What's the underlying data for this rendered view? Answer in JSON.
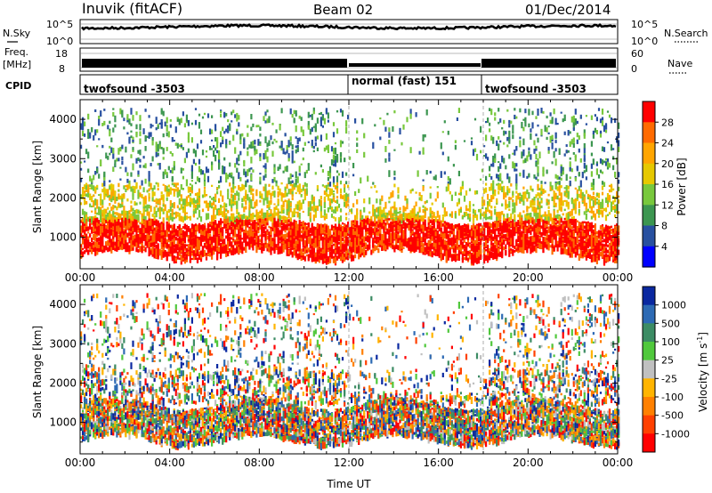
{
  "header": {
    "station": "Inuvik (fitACF)",
    "beam": "Beam 02",
    "date": "01/Dec/2014"
  },
  "noise_panel": {
    "left_label": "N.Sky",
    "right_label": "N.Search",
    "left_ticks": [
      "10^5",
      "10^0"
    ],
    "right_ticks": [
      "10^5",
      "10^0"
    ]
  },
  "freq_panel": {
    "left_label_1": "Freq.",
    "left_label_2": "[MHz]",
    "right_label": "Nave",
    "left_ticks": [
      "18",
      "8"
    ],
    "right_ticks": [
      "60",
      "0"
    ]
  },
  "cpid_panel": {
    "label": "CPID",
    "segments": [
      {
        "name": "twofsound -3503",
        "start_hour": 0,
        "end_hour": 12
      },
      {
        "name": "normal (fast) 151",
        "start_hour": 12,
        "end_hour": 18
      },
      {
        "name": "twofsound -3503",
        "start_hour": 18,
        "end_hour": 24
      }
    ]
  },
  "chart_data": [
    {
      "type": "heatmap",
      "name": "power",
      "ylabel": "Slant Range [km]",
      "xlabel": "Time UT",
      "x_ticks": [
        "00:00",
        "04:00",
        "08:00",
        "12:00",
        "16:00",
        "20:00",
        "00:00"
      ],
      "x_tick_hours": [
        0,
        4,
        8,
        12,
        16,
        20,
        24
      ],
      "y_ticks": [
        1000,
        2000,
        3000,
        4000
      ],
      "ylim": [
        200,
        4500
      ],
      "xlim": [
        0,
        24
      ],
      "colorbar": {
        "label": "Power [dB]",
        "ticks": [
          "28",
          "24",
          "20",
          "16",
          "12",
          "8",
          "4"
        ],
        "colors": [
          "#ff0000",
          "#ff6a00",
          "#ffa500",
          "#e6c800",
          "#78c83c",
          "#3c9650",
          "#2850a0",
          "#0000ff"
        ]
      },
      "mode_boundaries_hours": [
        12,
        18
      ]
    },
    {
      "type": "heatmap",
      "name": "velocity",
      "ylabel": "Slant Range [km]",
      "xlabel": "Time UT",
      "x_ticks": [
        "00:00",
        "04:00",
        "08:00",
        "12:00",
        "16:00",
        "20:00",
        "00:00"
      ],
      "x_tick_hours": [
        0,
        4,
        8,
        12,
        16,
        20,
        24
      ],
      "y_ticks": [
        1000,
        2000,
        3000,
        4000
      ],
      "ylim": [
        200,
        4500
      ],
      "xlim": [
        0,
        24
      ],
      "colorbar": {
        "label": "Velocity [m s^-1]",
        "ticks": [
          "1000",
          "500",
          "100",
          "25",
          "-25",
          "-100",
          "-500",
          "-1000"
        ],
        "colors": [
          "#0a28a0",
          "#2d6ab4",
          "#3c8c64",
          "#50c83c",
          "#c0c0c0",
          "#ffb400",
          "#ff8000",
          "#ff4000",
          "#ff0000"
        ]
      },
      "mode_boundaries_hours": [
        12,
        18
      ]
    }
  ],
  "x_axis_title": "Time UT"
}
